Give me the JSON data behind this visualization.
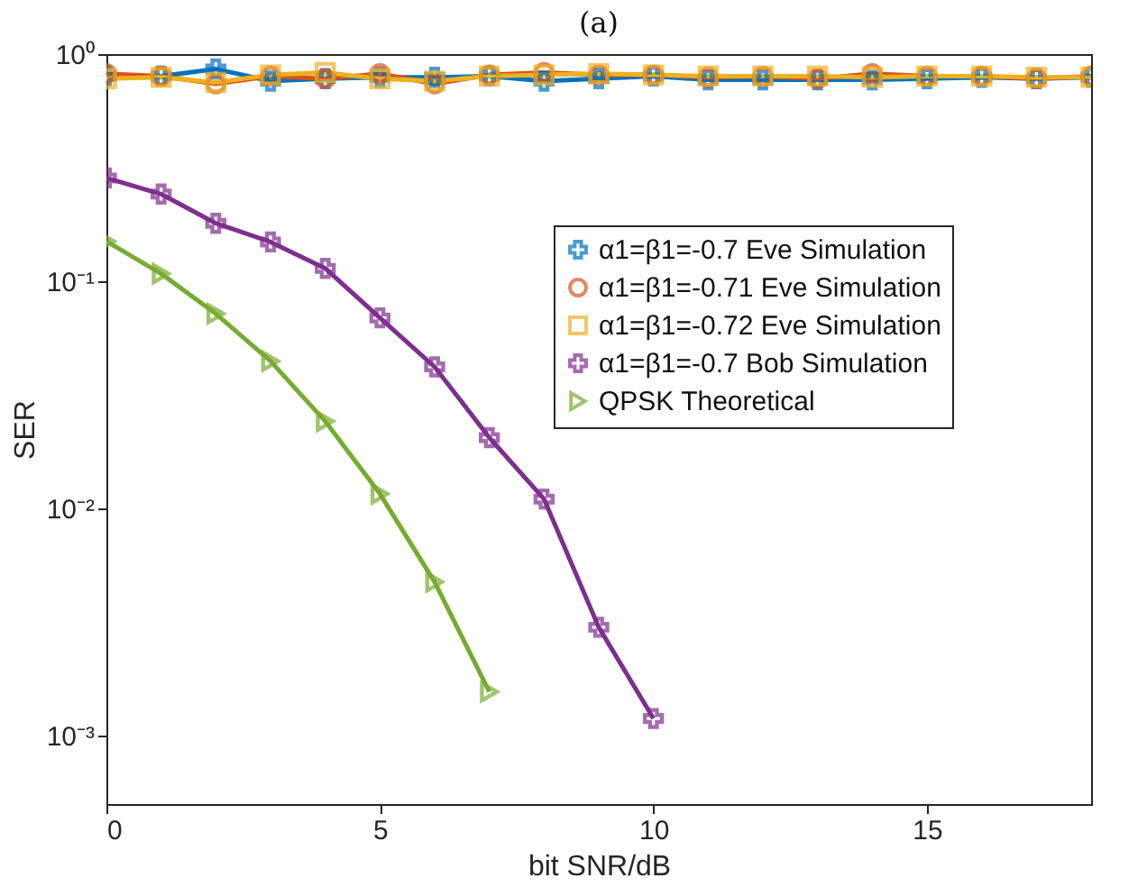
{
  "chart_data": {
    "type": "line",
    "title": "(a)",
    "xlabel": "bit SNR/dB",
    "ylabel": "SER",
    "log": "y",
    "xlim": [
      0,
      18
    ],
    "xticks": [
      0,
      5,
      10,
      15
    ],
    "ylim": [
      0.0005,
      1
    ],
    "yticks": [
      {
        "value": 0.001,
        "label": "10⁻³"
      },
      {
        "value": 0.01,
        "label": "10⁻²"
      },
      {
        "value": 0.1,
        "label": "10⁻¹"
      },
      {
        "value": 1,
        "label": "10⁰"
      }
    ],
    "grid": false,
    "legend": "top right",
    "line_style": "solid",
    "series": [
      {
        "name": "α1=β1=-0.7 Eve Simulation",
        "color": "#0072bd",
        "marker": "cross",
        "x": [
          0,
          1,
          2,
          3,
          4,
          5,
          6,
          7,
          8,
          9,
          10,
          11,
          12,
          13,
          14,
          15,
          16,
          17,
          18
        ],
        "values": [
          0.8,
          0.8,
          0.86,
          0.76,
          0.78,
          0.79,
          0.79,
          0.8,
          0.76,
          0.78,
          0.8,
          0.77,
          0.77,
          0.77,
          0.77,
          0.78,
          0.79,
          0.78,
          0.79
        ]
      },
      {
        "name": "α1=β1=-0.71 Eve Simulation",
        "color": "#d95319",
        "marker": "circle",
        "x": [
          0,
          1,
          2,
          3,
          4,
          5,
          6,
          7,
          8,
          9,
          10,
          11,
          12,
          13,
          14,
          15,
          16,
          17,
          18
        ],
        "values": [
          0.82,
          0.8,
          0.74,
          0.8,
          0.78,
          0.82,
          0.74,
          0.81,
          0.83,
          0.81,
          0.81,
          0.79,
          0.8,
          0.78,
          0.82,
          0.8,
          0.8,
          0.78,
          0.8
        ]
      },
      {
        "name": "α1=β1=-0.72 Eve Simulation",
        "color": "#edb120",
        "marker": "square",
        "x": [
          0,
          1,
          2,
          3,
          4,
          5,
          6,
          7,
          8,
          9,
          10,
          11,
          12,
          13,
          14,
          15,
          16,
          17,
          18
        ],
        "values": [
          0.78,
          0.79,
          0.75,
          0.81,
          0.83,
          0.78,
          0.76,
          0.8,
          0.81,
          0.82,
          0.81,
          0.8,
          0.8,
          0.8,
          0.79,
          0.8,
          0.8,
          0.79,
          0.79
        ]
      },
      {
        "name": "α1=β1=-0.7 Bob Simulation",
        "color": "#7e2f8e",
        "marker": "cross",
        "x": [
          0,
          1,
          2,
          3,
          4,
          5,
          6,
          7,
          8,
          9,
          10
        ],
        "values": [
          0.285,
          0.242,
          0.18,
          0.149,
          0.114,
          0.069,
          0.042,
          0.0205,
          0.011,
          0.003,
          0.00119
        ]
      },
      {
        "name": "QPSK Theoretical",
        "color": "#77ac30",
        "marker": "triangle",
        "x": [
          0,
          1,
          2,
          3,
          4,
          5,
          6,
          7
        ],
        "values": [
          0.15,
          0.108,
          0.072,
          0.0445,
          0.0242,
          0.0116,
          0.00475,
          0.00156
        ]
      }
    ]
  }
}
